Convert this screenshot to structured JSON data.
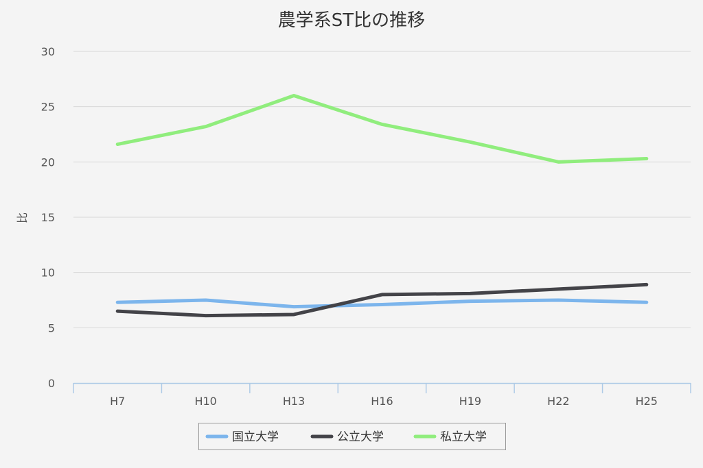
{
  "chart_data": {
    "type": "line",
    "title": "農学系ST比の推移",
    "ylabel": "比",
    "xlabel": "",
    "categories": [
      "H7",
      "H10",
      "H13",
      "H16",
      "H19",
      "H22",
      "H25"
    ],
    "ylim": [
      0,
      30
    ],
    "yticks": [
      "0",
      "5",
      "10",
      "15",
      "20",
      "25",
      "30"
    ],
    "grid": true,
    "legend_position": "bottom-center",
    "series": [
      {
        "name": "国立大学",
        "color": "#7cb5ec",
        "values": [
          7.3,
          7.5,
          6.9,
          7.1,
          7.4,
          7.5,
          7.3
        ]
      },
      {
        "name": "公立大学",
        "color": "#434348",
        "values": [
          6.5,
          6.1,
          6.2,
          8.0,
          8.1,
          8.5,
          8.9
        ]
      },
      {
        "name": "私立大学",
        "color": "#90ed7d",
        "values": [
          21.6,
          23.2,
          26.0,
          23.4,
          21.8,
          20.0,
          20.3
        ]
      }
    ]
  }
}
